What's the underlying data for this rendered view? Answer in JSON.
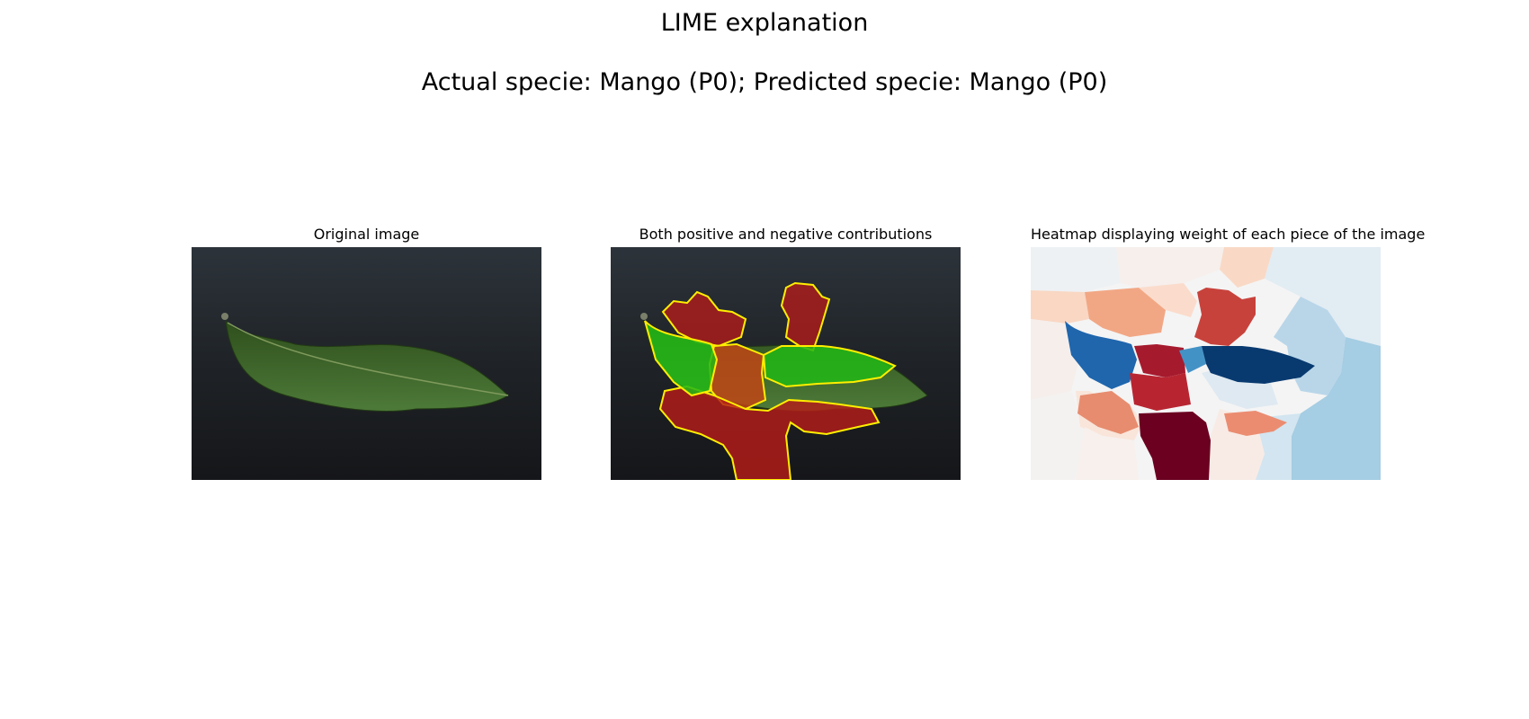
{
  "figure": {
    "title_line1": "LIME explanation",
    "title_line2": "Actual specie: Mango (P0); Predicted specie: Mango (P0)"
  },
  "panels": [
    {
      "title": "Original image"
    },
    {
      "title": "Both positive and negative contributions"
    },
    {
      "title": "Heatmap displaying weight of each piece of the image"
    }
  ],
  "colors": {
    "background_dark": "#1f2226",
    "leaf": "#3f6b2c",
    "positive": "#22b815",
    "negative": "#b51c19",
    "boundary": "#ffee00",
    "colormap": "RdBu"
  },
  "colormap": "RdBu"
}
